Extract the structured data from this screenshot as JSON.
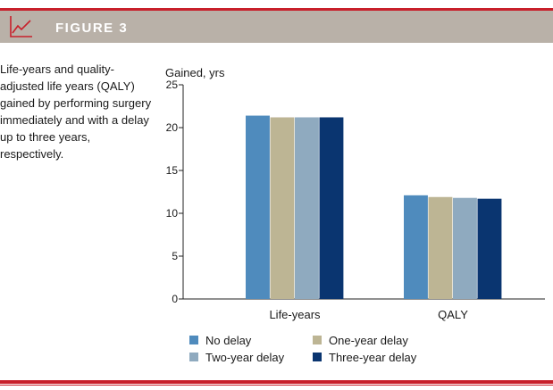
{
  "figure": {
    "title": "FIGURE 3",
    "icon": "line-chart-icon",
    "caption": "Life-years and quality-adjusted life years (QALY) gained by performing surgery immediately and with a delay up to three years, respectively."
  },
  "colors": {
    "accent": "#c8202b",
    "header_band": "#b9b1a8"
  },
  "chart_data": {
    "type": "bar",
    "ylabel": "Gained, yrs",
    "xlabel": "",
    "ylim": [
      0,
      25
    ],
    "yticks": [
      0,
      5,
      10,
      15,
      20,
      25
    ],
    "categories": [
      "Life-years",
      "QALY"
    ],
    "series": [
      {
        "name": "No delay",
        "color": "#4f8bbd",
        "values": [
          21.4,
          12.1
        ]
      },
      {
        "name": "One-year delay",
        "color": "#bdb594",
        "values": [
          21.2,
          11.9
        ]
      },
      {
        "name": "Two-year delay",
        "color": "#8faabf",
        "values": [
          21.2,
          11.8
        ]
      },
      {
        "name": "Three-year delay",
        "color": "#0a3570",
        "values": [
          21.2,
          11.7
        ]
      }
    ],
    "legend": {
      "placement": "bottom",
      "order": [
        "No delay",
        "One-year delay",
        "Two-year delay",
        "Three-year delay"
      ]
    },
    "grid": false
  }
}
